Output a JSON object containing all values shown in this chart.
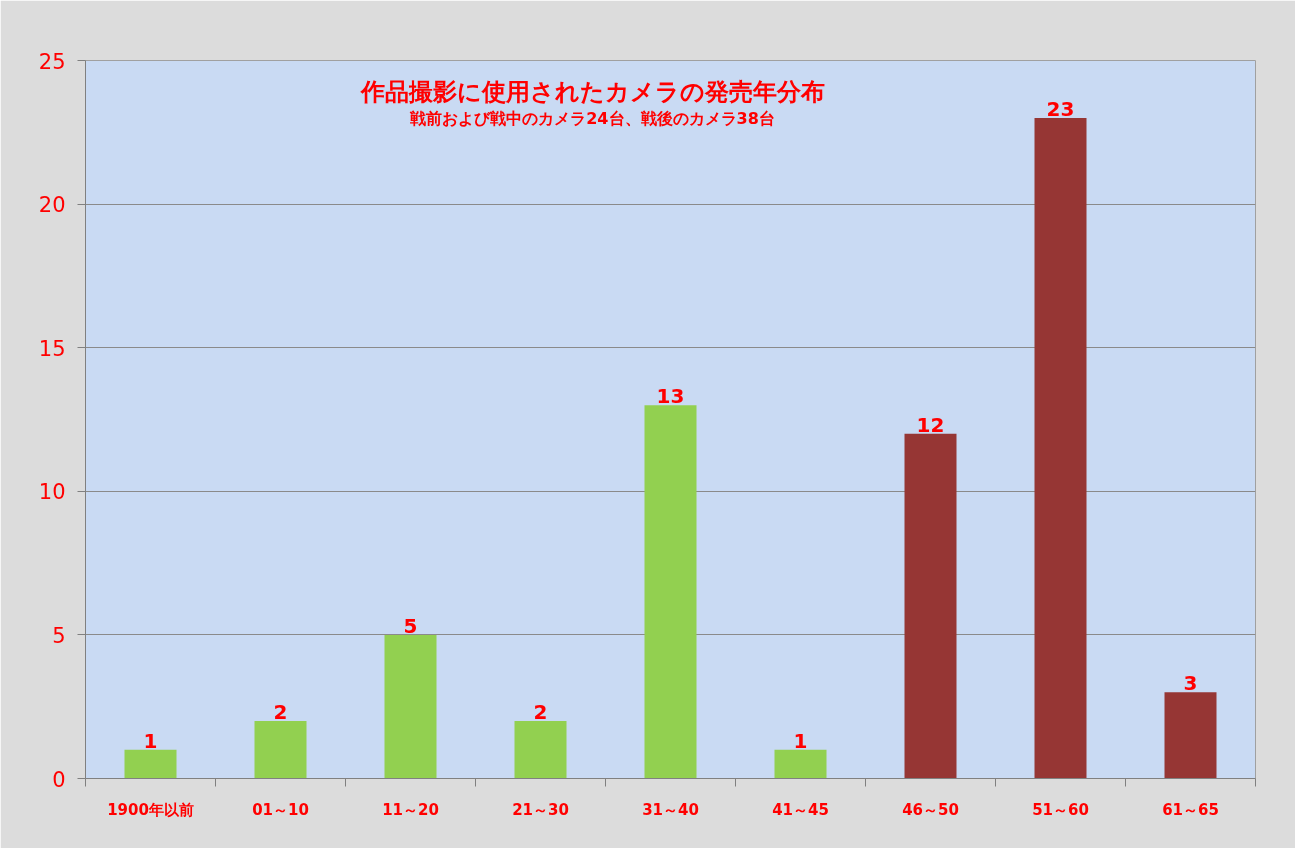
{
  "chart_data": {
    "type": "bar",
    "title": "作品撮影に使用されたカメラの発売年分布",
    "subtitle": "戦前および戦中のカメラ24台、戦後のカメラ38台",
    "categories": [
      "1900年以前",
      "01～10",
      "11～20",
      "21～30",
      "31～40",
      "41～45",
      "46～50",
      "51～60",
      "61～65"
    ],
    "values": [
      1,
      2,
      5,
      2,
      13,
      1,
      12,
      23,
      3
    ],
    "colors": [
      "#92d050",
      "#92d050",
      "#92d050",
      "#92d050",
      "#92d050",
      "#92d050",
      "#963634",
      "#963634",
      "#963634"
    ],
    "ylim": [
      0,
      25
    ],
    "yticks": [
      0,
      5,
      10,
      15,
      20,
      25
    ],
    "grid": "y",
    "data_labels": true
  }
}
